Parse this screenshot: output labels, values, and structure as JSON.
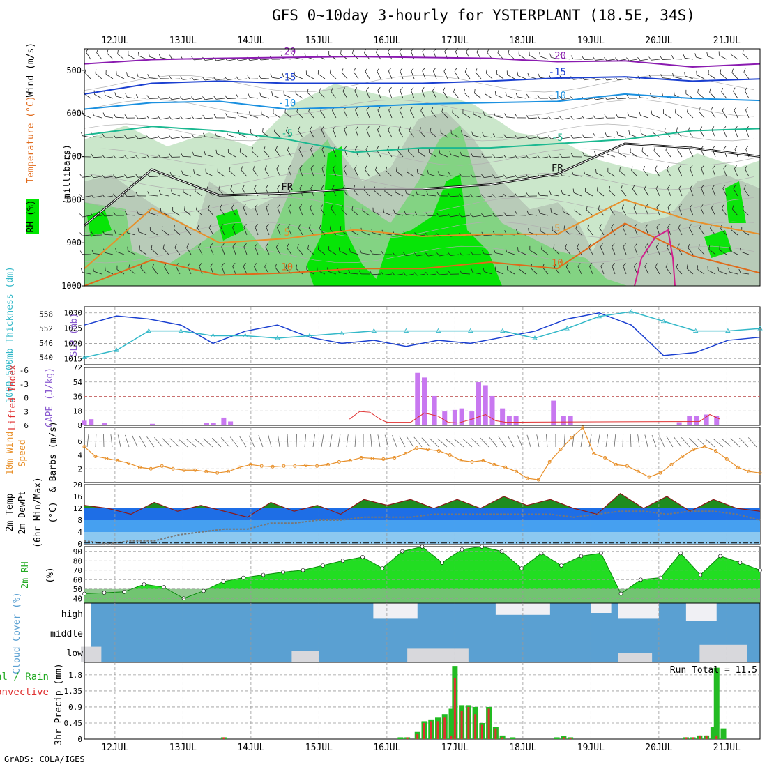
{
  "header": {
    "title": "GFS 0~10day 3-hourly for YSTERPLANT (18.5E, 34S)",
    "footer": "GrADS: COLA/IGES"
  },
  "colors": {
    "rh_light": "#c8e6c8",
    "rh_mid": "#7fd37f",
    "rh_bright": "#00e600",
    "rh_dark_gray": "#b4c8b4",
    "slp": "#1a3fd0",
    "thickness": "#33b8c8",
    "cape": "#c878f0",
    "lifted_index": "#e03030",
    "wind_speed": "#e8902a",
    "temp_fill": "#1e8c1e",
    "dew_fill_dark": "#1e6ee6",
    "dew_fill_mid": "#46a0f0",
    "dew_fill_light": "#8cc8f0",
    "rh2m": "#00cc00",
    "cloud_bg": "#5aa0d2",
    "cloud_fill": "#f0f0f4",
    "precip_total": "#22bb22",
    "precip_conv": "#e03030"
  },
  "chart_data": [
    {
      "panel": "upper-air",
      "type": "heatmap",
      "y_axis_label": "(millibars)",
      "legend_labels": {
        "wind": "Wind (m/s)",
        "temperature": "Temperature (°C)",
        "rh": "RH (%)"
      },
      "ylim": [
        450,
        1000
      ],
      "yticks": [
        500,
        600,
        700,
        800,
        900,
        1000
      ],
      "x_ticks": [
        "12JUL",
        "13JUL",
        "14JUL",
        "15JUL",
        "16JUL",
        "17JUL",
        "18JUL",
        "19JUL",
        "20JUL",
        "21JUL"
      ],
      "contour_labels": [
        "-20",
        "-15",
        "-10",
        "-5",
        "FR",
        "5",
        "10",
        "30"
      ],
      "isotherms": [
        {
          "label": "-20",
          "color": "#8a1ab0",
          "values": [
            485,
            475,
            472,
            470,
            468,
            470,
            472,
            480,
            478,
            492,
            485
          ]
        },
        {
          "label": "-15",
          "color": "#1a3fd0",
          "values": [
            555,
            530,
            525,
            530,
            530,
            530,
            525,
            518,
            515,
            525,
            520
          ]
        },
        {
          "label": "-10",
          "color": "#1a90e0",
          "values": [
            590,
            575,
            572,
            590,
            585,
            578,
            575,
            572,
            555,
            565,
            570
          ]
        },
        {
          "label": "-5",
          "color": "#1ab890",
          "values": [
            650,
            630,
            640,
            660,
            690,
            680,
            680,
            670,
            660,
            640,
            635
          ]
        },
        {
          "label": "FR",
          "color": "#111111",
          "values": [
            860,
            730,
            790,
            785,
            775,
            775,
            765,
            740,
            670,
            680,
            700
          ]
        },
        {
          "label": "5",
          "color": "#e8902a",
          "values": [
            960,
            820,
            900,
            890,
            870,
            885,
            880,
            880,
            800,
            850,
            880
          ]
        },
        {
          "label": "10",
          "color": "#e06a1a",
          "values": [
            1000,
            940,
            975,
            970,
            960,
            960,
            945,
            960,
            855,
            930,
            970
          ]
        }
      ]
    },
    {
      "panel": "slp-thickness",
      "type": "line",
      "y_axis_label": "1000-500mb Thickness (dm)",
      "y2_axis_label": "SLP (mb)",
      "left_ticks": [
        540,
        546,
        552,
        558
      ],
      "right_ticks": [
        1015,
        1020,
        1025,
        1030
      ],
      "series": [
        {
          "name": "SLP (mb)",
          "color": "#1a3fd0",
          "values": [
            1026,
            1029,
            1028,
            1026,
            1020,
            1024,
            1026,
            1022,
            1020,
            1021,
            1019,
            1021,
            1020,
            1022,
            1024,
            1028,
            1030,
            1026,
            1016,
            1017,
            1021,
            1022
          ]
        },
        {
          "name": "1000-500mb Thickness (dm)",
          "color": "#33b8c8",
          "values": [
            540,
            543,
            551,
            551,
            549,
            549,
            548,
            549,
            550,
            551,
            551,
            551,
            551,
            551,
            548,
            552,
            557,
            559,
            555,
            551,
            551,
            552
          ]
        }
      ]
    },
    {
      "panel": "cape-li",
      "type": "bar",
      "y_axis_label": "CAPE (J/kg)",
      "y2_axis_label": "Lifted Index",
      "li_ticks": [
        "-6",
        "-3",
        "0",
        "3",
        "6"
      ],
      "cape_ticks": [
        "8",
        "18",
        "36",
        "54",
        "72"
      ],
      "cape_bars": [
        [
          11.55,
          6
        ],
        [
          11.65,
          8
        ],
        [
          11.85,
          3
        ],
        [
          12.55,
          2
        ],
        [
          13.35,
          3
        ],
        [
          13.45,
          3
        ],
        [
          13.6,
          10
        ],
        [
          13.7,
          5
        ],
        [
          16.45,
          68
        ],
        [
          16.55,
          62
        ],
        [
          16.7,
          38
        ],
        [
          16.85,
          18
        ],
        [
          17.0,
          20
        ],
        [
          17.1,
          22
        ],
        [
          17.25,
          18
        ],
        [
          17.35,
          56
        ],
        [
          17.45,
          52
        ],
        [
          17.55,
          38
        ],
        [
          17.7,
          22
        ],
        [
          17.8,
          12
        ],
        [
          17.9,
          12
        ],
        [
          18.45,
          32
        ],
        [
          18.6,
          12
        ],
        [
          18.7,
          12
        ],
        [
          20.3,
          4
        ],
        [
          20.45,
          12
        ],
        [
          20.55,
          12
        ],
        [
          20.7,
          14
        ],
        [
          20.85,
          12
        ]
      ],
      "li_curve": [
        [
          15.45,
          8
        ],
        [
          15.6,
          18
        ],
        [
          15.75,
          17
        ],
        [
          15.9,
          8
        ],
        [
          16.0,
          4
        ],
        [
          16.35,
          4
        ],
        [
          16.55,
          16
        ],
        [
          16.75,
          12
        ],
        [
          16.9,
          4
        ],
        [
          17.05,
          3
        ],
        [
          17.25,
          8
        ],
        [
          17.45,
          14
        ],
        [
          17.6,
          6
        ],
        [
          17.75,
          4
        ],
        [
          20.6,
          5
        ],
        [
          20.75,
          14
        ],
        [
          20.9,
          8
        ]
      ]
    },
    {
      "panel": "wind10m",
      "type": "line",
      "y_axis_label": "10m Wind Speed & Barbs (m/s)",
      "yticks": [
        "2",
        "4",
        "6"
      ],
      "series": [
        {
          "name": "10m Wind Speed",
          "color": "#e8902a",
          "values": [
            5.2,
            3.8,
            3.5,
            3.2,
            2.8,
            2.2,
            2.0,
            2.4,
            2.0,
            1.8,
            1.8,
            1.6,
            1.4,
            1.6,
            2.2,
            2.6,
            2.4,
            2.3,
            2.4,
            2.4,
            2.5,
            2.4,
            2.6,
            3.0,
            3.2,
            3.6,
            3.5,
            3.4,
            3.6,
            4.2,
            5.0,
            4.8,
            4.6,
            4.0,
            3.2,
            3.0,
            3.2,
            2.6,
            2.2,
            1.6,
            0.6,
            0.4,
            3.0,
            4.8,
            6.5,
            8.0,
            4.2,
            3.6,
            2.6,
            2.4,
            1.6,
            0.8,
            1.4,
            2.6,
            3.8,
            4.8,
            5.2,
            4.6,
            3.4,
            2.2,
            1.6,
            1.4
          ]
        }
      ]
    },
    {
      "panel": "temp2m",
      "type": "area",
      "y_axis_label": "2m Temp 2m DewPt (6hr Min/Max) (°C)",
      "yticks": [
        "0",
        "4",
        "8",
        "12",
        "16",
        "20"
      ],
      "series": [
        {
          "name": "2m Temp",
          "color": "#1e8c1e",
          "values": [
            13,
            12,
            10,
            14,
            11,
            13,
            11,
            9,
            14,
            11,
            13,
            10,
            15,
            13,
            15,
            12,
            15,
            12,
            16,
            13,
            15,
            12,
            10,
            17,
            12,
            16,
            11,
            15,
            12,
            11
          ]
        },
        {
          "name": "2m DewPt",
          "color": "#888888",
          "values": [
            1,
            0,
            1,
            1,
            3,
            4,
            5,
            5,
            7,
            7,
            8,
            8,
            9,
            9,
            9,
            10,
            10,
            10,
            10,
            10,
            10,
            9,
            10,
            11,
            11,
            10,
            11,
            11,
            10,
            8
          ]
        }
      ]
    },
    {
      "panel": "rh2m",
      "type": "area",
      "y_axis_label": "2m RH (%)",
      "yticks": [
        "40",
        "50",
        "60",
        "70",
        "80",
        "90"
      ],
      "series": [
        {
          "name": "2m RH",
          "color": "#00cc00",
          "values": [
            45,
            46,
            47,
            55,
            52,
            40,
            48,
            58,
            62,
            65,
            68,
            70,
            75,
            80,
            84,
            72,
            90,
            95,
            78,
            92,
            95,
            90,
            72,
            88,
            75,
            85,
            88,
            45,
            60,
            62,
            88,
            65,
            85,
            78,
            70
          ]
        }
      ]
    },
    {
      "panel": "cloud",
      "type": "heatmap",
      "y_axis_label": "Cloud Cover (%)",
      "levels": [
        "high",
        "middle",
        "low"
      ],
      "high_blocks": [
        [
          15.8,
          16.45,
          0.8
        ],
        [
          17.6,
          18.4,
          0.6
        ],
        [
          19.0,
          19.3,
          0.5
        ],
        [
          19.4,
          20.0,
          0.8
        ],
        [
          20.4,
          20.85,
          0.9
        ]
      ],
      "low_blocks": [
        [
          11.5,
          11.8,
          0.8
        ],
        [
          14.6,
          15.0,
          0.6
        ],
        [
          16.3,
          17.2,
          0.7
        ],
        [
          19.4,
          19.9,
          0.5
        ],
        [
          20.6,
          21.3,
          0.9
        ]
      ]
    },
    {
      "panel": "precip",
      "type": "bar",
      "y_axis_label": "3hr Precip (mm)",
      "legend": {
        "total": "Total / Rain",
        "convective": "Convective"
      },
      "yticks": [
        "0",
        "0.45",
        "0.9",
        "1.35",
        "1.8"
      ],
      "run_total": "Run Total = 11.5",
      "x_ticks": [
        "12JUL",
        "13JUL",
        "14JUL",
        "15JUL",
        "16JUL",
        "17JUL",
        "18JUL",
        "19JUL",
        "20JUL",
        "21JUL"
      ],
      "bars": [
        [
          13.6,
          0.05,
          0.05
        ],
        [
          16.2,
          0.05,
          0.0
        ],
        [
          16.3,
          0.05,
          0.05
        ],
        [
          16.45,
          0.2,
          0.15
        ],
        [
          16.55,
          0.5,
          0.45
        ],
        [
          16.65,
          0.55,
          0.5
        ],
        [
          16.75,
          0.6,
          0.5
        ],
        [
          16.85,
          0.7,
          0.6
        ],
        [
          16.95,
          0.85,
          0.1
        ],
        [
          17.0,
          2.05,
          1.7
        ],
        [
          17.1,
          0.95,
          0.8
        ],
        [
          17.2,
          0.95,
          0.9
        ],
        [
          17.3,
          0.9,
          0.7
        ],
        [
          17.4,
          0.45,
          0.4
        ],
        [
          17.5,
          0.9,
          0.85
        ],
        [
          17.6,
          0.35,
          0.3
        ],
        [
          17.7,
          0.1,
          0.05
        ],
        [
          17.85,
          0.05,
          0.0
        ],
        [
          18.5,
          0.05,
          0.0
        ],
        [
          18.6,
          0.08,
          0.05
        ],
        [
          18.7,
          0.05,
          0.03
        ],
        [
          20.4,
          0.05,
          0.05
        ],
        [
          20.5,
          0.05,
          0.05
        ],
        [
          20.6,
          0.1,
          0.1
        ],
        [
          20.7,
          0.1,
          0.1
        ],
        [
          20.8,
          0.35,
          0.0
        ],
        [
          20.85,
          2.0,
          0.1
        ],
        [
          20.95,
          0.3,
          0.0
        ]
      ]
    }
  ]
}
